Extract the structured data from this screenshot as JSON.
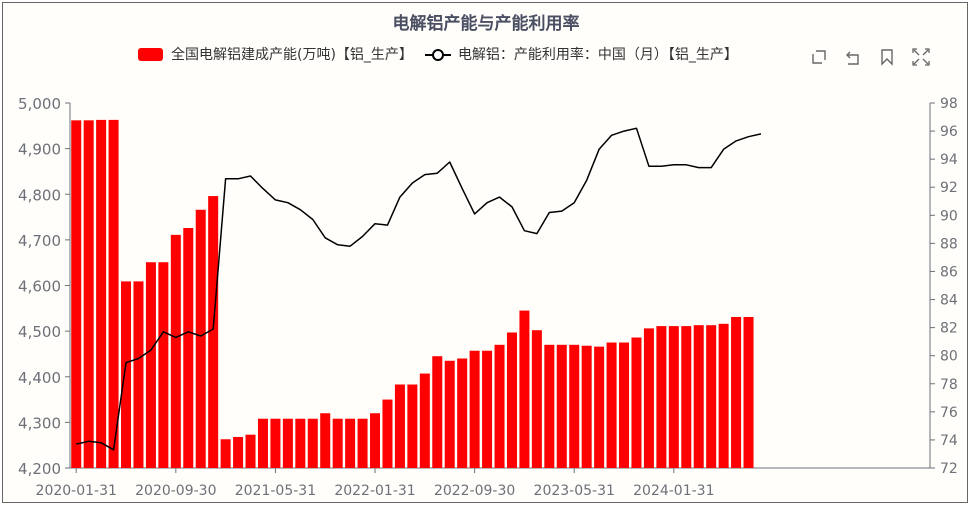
{
  "chart_data": {
    "type": "bar+line",
    "title": "电解铝产能与产能利用率",
    "legend_placement": "top",
    "x_tick_labels": [
      "2020-01-31",
      "2020-09-30",
      "2021-05-31",
      "2022-01-31",
      "2022-09-30",
      "2023-05-31",
      "2024-01-31"
    ],
    "x_tick_at_bar_index": [
      0,
      8,
      16,
      24,
      32,
      40,
      48
    ],
    "y_left": {
      "min": 4200,
      "max": 5000,
      "ticks": [
        4200,
        4300,
        4400,
        4500,
        4600,
        4700,
        4800,
        4900,
        5000
      ],
      "tick_labels": [
        "4,200",
        "4,300",
        "4,400",
        "4,500",
        "4,600",
        "4,700",
        "4,800",
        "4,900",
        "5,000"
      ]
    },
    "y_right": {
      "min": 72,
      "max": 98,
      "ticks": [
        72,
        74,
        76,
        78,
        80,
        82,
        84,
        86,
        88,
        90,
        92,
        94,
        96,
        98
      ],
      "tick_labels": [
        "72",
        "74",
        "76",
        "78",
        "80",
        "82",
        "84",
        "86",
        "88",
        "90",
        "92",
        "94",
        "96",
        "98"
      ]
    },
    "series": [
      {
        "name": "全国电解铝建成产能(万吨)【铝_生产】",
        "type": "bar",
        "axis": "left",
        "color": "#ff0000",
        "values": [
          4962,
          4962,
          4963,
          4963,
          4609,
          4609,
          4651,
          4651,
          4711,
          4726,
          4766,
          4796,
          4263,
          4268,
          4273,
          4308,
          4308,
          4308,
          4308,
          4308,
          4320,
          4308,
          4308,
          4308,
          4320,
          4350,
          4383,
          4383,
          4407,
          4445,
          4435,
          4440,
          4457,
          4457,
          4470,
          4497,
          4545,
          4502,
          4470,
          4470,
          4470,
          4468,
          4466,
          4475,
          4475,
          4486,
          4506,
          4511,
          4511,
          4511,
          4513,
          4513,
          4516,
          4531,
          4531
        ]
      },
      {
        "name": "电解铝：产能利用率：中国（月）【铝_生产】",
        "type": "line",
        "axis": "right",
        "color": "#000000",
        "values": [
          73.7,
          73.9,
          73.8,
          73.3,
          79.5,
          79.8,
          80.4,
          81.7,
          81.3,
          81.7,
          81.4,
          81.9,
          92.6,
          92.6,
          92.8,
          91.9,
          91.1,
          90.9,
          90.4,
          89.7,
          88.4,
          87.9,
          87.8,
          88.5,
          89.4,
          89.3,
          91.3,
          92.3,
          92.9,
          93.0,
          93.8,
          91.9,
          90.1,
          90.9,
          91.3,
          90.6,
          88.9,
          88.7,
          90.2,
          90.3,
          90.9,
          92.5,
          94.7,
          95.7,
          96.0,
          96.2,
          93.5,
          93.5,
          93.6,
          93.6,
          93.4,
          93.4,
          94.7,
          95.3,
          95.6,
          95.8
        ]
      }
    ],
    "grid": false
  },
  "icons": [
    "restore-area-icon",
    "undo-icon",
    "bookmark-icon",
    "fullscreen-icon"
  ]
}
